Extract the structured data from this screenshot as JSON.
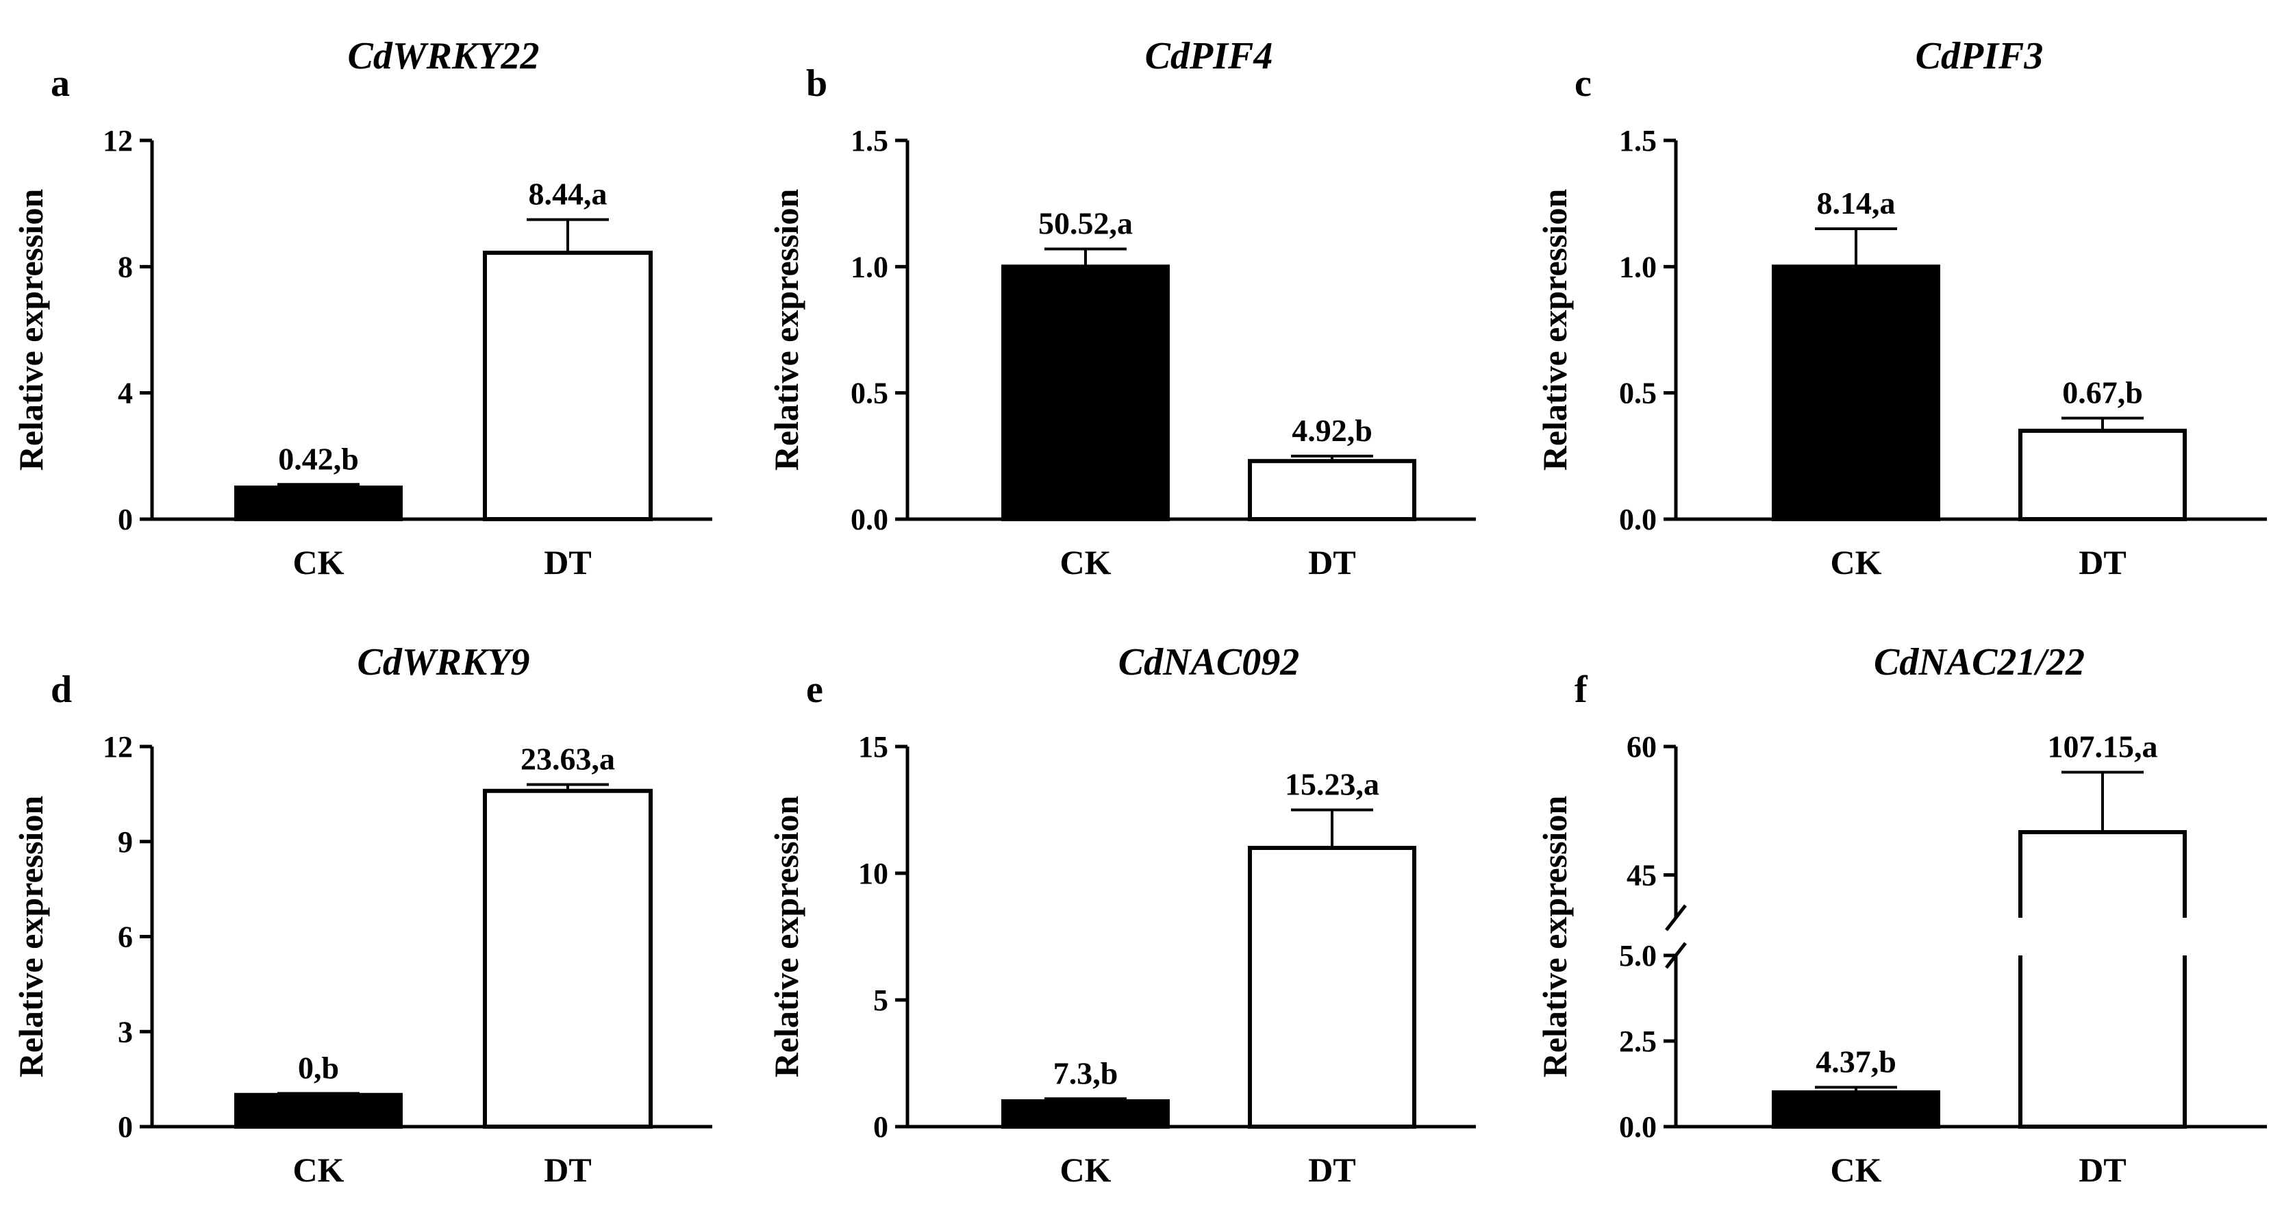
{
  "chart_data": [
    {
      "type": "bar",
      "panel": "a",
      "title": "CdWRKY22",
      "ylabel": "Relative expression",
      "xlabel": "",
      "categories": [
        "CK",
        "DT"
      ],
      "values": [
        1.0,
        8.44
      ],
      "errors": [
        0.1,
        1.05
      ],
      "data_labels": [
        "0.42,b",
        "8.44,a"
      ],
      "bar_fills": [
        "#000000",
        "#ffffff"
      ],
      "ylim": [
        0,
        12
      ],
      "yticks": [
        0,
        4,
        8,
        12
      ],
      "ytick_labels": [
        "0",
        "4",
        "8",
        "12"
      ]
    },
    {
      "type": "bar",
      "panel": "b",
      "title": "CdPIF4",
      "ylabel": "Relative expression",
      "xlabel": "",
      "categories": [
        "CK",
        "DT"
      ],
      "values": [
        1.0,
        0.23
      ],
      "errors": [
        0.07,
        0.02
      ],
      "data_labels": [
        "50.52,a",
        "4.92,b"
      ],
      "bar_fills": [
        "#000000",
        "#ffffff"
      ],
      "ylim": [
        0,
        1.5
      ],
      "yticks": [
        0,
        0.5,
        1.0,
        1.5
      ],
      "ytick_labels": [
        "0.0",
        "0.5",
        "1.0",
        "1.5"
      ]
    },
    {
      "type": "bar",
      "panel": "c",
      "title": "CdPIF3",
      "ylabel": "Relative expression",
      "xlabel": "",
      "categories": [
        "CK",
        "DT"
      ],
      "values": [
        1.0,
        0.35
      ],
      "errors": [
        0.15,
        0.05
      ],
      "data_labels": [
        "8.14,a",
        "0.67,b"
      ],
      "bar_fills": [
        "#000000",
        "#ffffff"
      ],
      "ylim": [
        0,
        1.5
      ],
      "yticks": [
        0,
        0.5,
        1.0,
        1.5
      ],
      "ytick_labels": [
        "0.0",
        "0.5",
        "1.0",
        "1.5"
      ]
    },
    {
      "type": "bar",
      "panel": "d",
      "title": "CdWRKY9",
      "ylabel": "Relative expression",
      "xlabel": "",
      "categories": [
        "CK",
        "DT"
      ],
      "values": [
        1.0,
        10.6
      ],
      "errors": [
        0.05,
        0.2
      ],
      "data_labels": [
        "0,b",
        "23.63,a"
      ],
      "bar_fills": [
        "#000000",
        "#ffffff"
      ],
      "ylim": [
        0,
        12
      ],
      "yticks": [
        0,
        3,
        6,
        9,
        12
      ],
      "ytick_labels": [
        "0",
        "3",
        "6",
        "9",
        "12"
      ]
    },
    {
      "type": "bar",
      "panel": "e",
      "title": "CdNAC092",
      "ylabel": "Relative expression",
      "xlabel": "",
      "categories": [
        "CK",
        "DT"
      ],
      "values": [
        1.0,
        11.0
      ],
      "errors": [
        0.1,
        1.5
      ],
      "data_labels": [
        "7.3,b",
        "15.23,a"
      ],
      "bar_fills": [
        "#000000",
        "#ffffff"
      ],
      "ylim": [
        0,
        15
      ],
      "yticks": [
        0,
        5,
        10,
        15
      ],
      "ytick_labels": [
        "0",
        "5",
        "10",
        "15"
      ]
    },
    {
      "type": "bar",
      "panel": "f",
      "title": "CdNAC21/22",
      "ylabel": "Relative expression",
      "xlabel": "",
      "categories": [
        "CK",
        "DT"
      ],
      "values": [
        1.0,
        50.0
      ],
      "errors": [
        0.15,
        7.0
      ],
      "data_labels": [
        "4.37,b",
        "107.15,a"
      ],
      "bar_fills": [
        "#000000",
        "#ffffff"
      ],
      "axis_break": {
        "lower": [
          0,
          5.0
        ],
        "upper": [
          40,
          60
        ]
      },
      "yticks": [
        0,
        2.5,
        5.0,
        45,
        60
      ],
      "ytick_labels": [
        "0.0",
        "2.5",
        "5.0",
        "45",
        "60"
      ]
    }
  ]
}
